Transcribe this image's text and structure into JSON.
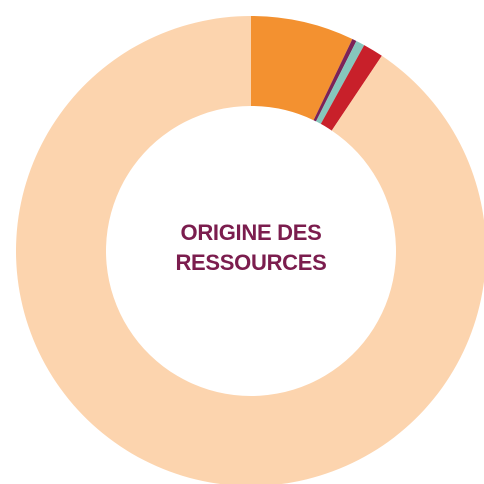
{
  "chart_data": {
    "type": "donut",
    "title": "ORIGINE DES RESSOURCES",
    "values": [
      7.1,
      0.3,
      0.6,
      1.4,
      90.6
    ],
    "colors": [
      "#f39130",
      "#7b2358",
      "#86c6bc",
      "#c8202a",
      "#fcd4ae"
    ]
  }
}
